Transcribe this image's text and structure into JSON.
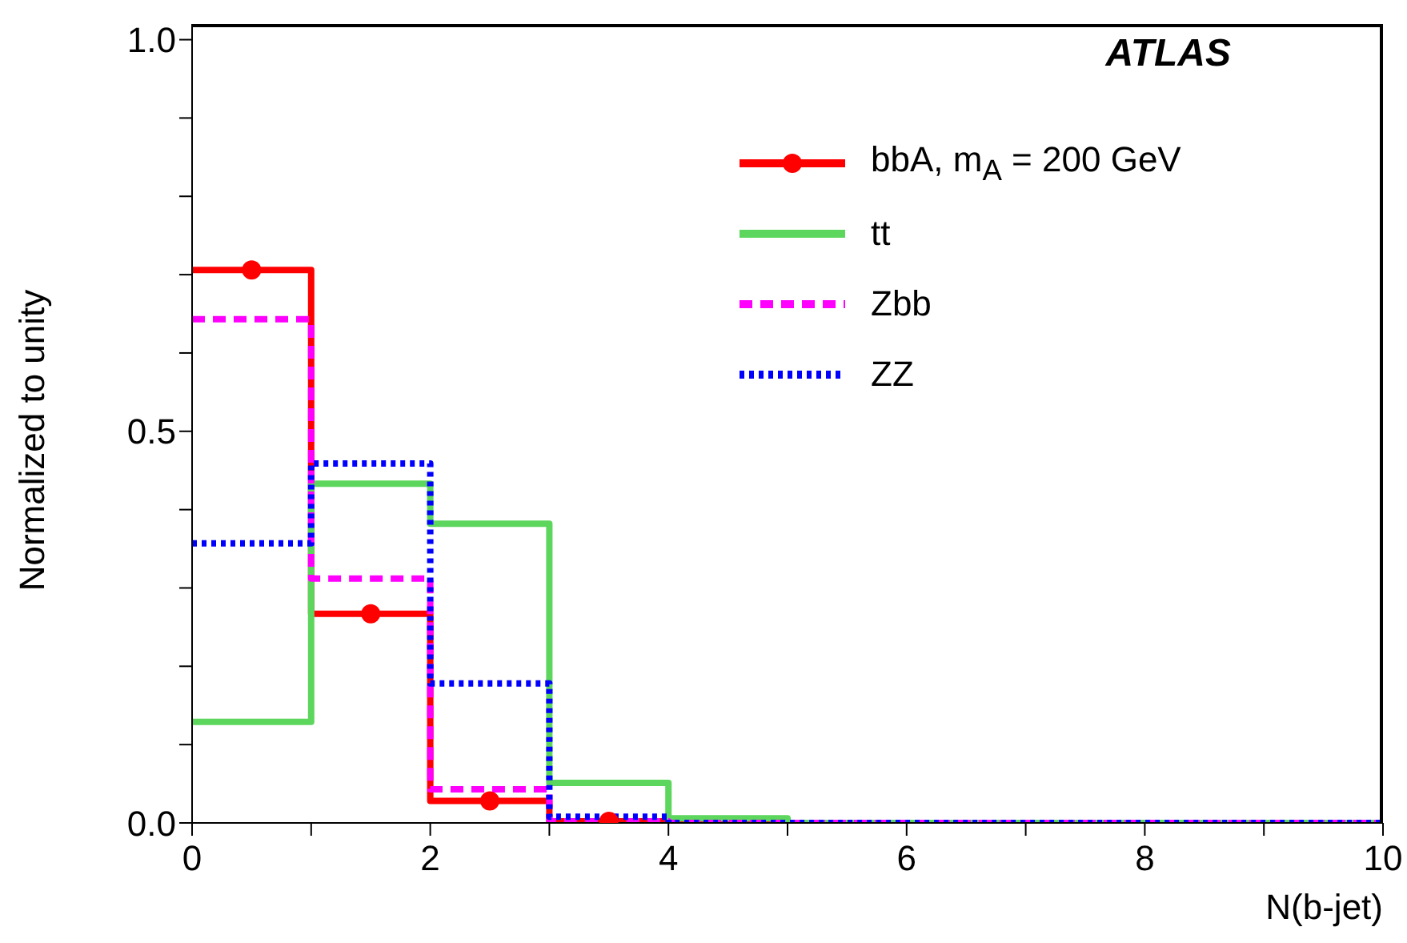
{
  "chart_data": {
    "type": "histogram",
    "xlabel": "N(b-jet)",
    "ylabel": "Normalized to unity",
    "annotations": [
      "ATLAS"
    ],
    "bins": [
      0,
      1,
      2,
      3,
      4,
      5,
      6,
      7,
      8,
      9,
      10
    ],
    "series": [
      {
        "name": "bbA, m$_{A}$ = 200 GeV",
        "color": "#ff0000",
        "values": [
          0.706,
          0.267,
          0.028,
          0.002,
          0,
          0,
          0,
          0,
          0,
          0
        ],
        "line_style": "solid"
      },
      {
        "type": "scatter",
        "color": "#ff0000",
        "x": [
          0.5,
          1.5,
          2.5,
          3.5
        ],
        "values": [
          0.706,
          0.267,
          0.028,
          0.002
        ],
        "marker": "circle"
      },
      {
        "name": "tt",
        "color": "#5cd65c",
        "values": [
          0.129,
          0.433,
          0.382,
          0.051,
          0.006,
          0,
          0,
          0,
          0,
          0
        ],
        "line_style": "solid"
      },
      {
        "name": "Zbb",
        "color": "#ff00ff",
        "values": [
          0.643,
          0.312,
          0.043,
          0.002,
          0,
          0,
          0,
          0,
          0,
          0
        ],
        "line_style": "dashed"
      },
      {
        "name": "ZZ",
        "color": "#0000ff",
        "values": [
          0.357,
          0.459,
          0.178,
          0.008,
          0,
          0,
          0,
          0,
          0,
          0
        ],
        "line_style": "dotted"
      }
    ],
    "xlim": [
      0,
      10
    ],
    "ylim": [
      0,
      1.02
    ],
    "xticks": [
      0,
      {
        "value": 1,
        "label": null
      },
      2,
      {
        "value": 3,
        "label": null
      },
      4,
      {
        "value": 5,
        "label": null
      },
      6,
      {
        "value": 7,
        "label": null
      },
      8,
      {
        "value": 9,
        "label": null
      },
      10
    ],
    "yticks": [
      {
        "value": 0,
        "label": "0.0"
      },
      {
        "value": 0.1,
        "label": null
      },
      {
        "value": 0.2,
        "label": null
      },
      {
        "value": 0.3,
        "label": null
      },
      {
        "value": 0.4,
        "label": null
      },
      {
        "value": 0.5,
        "label": "0.5"
      },
      {
        "value": 0.6,
        "label": null
      },
      {
        "value": 0.7,
        "label": null
      },
      {
        "value": 0.8,
        "label": null
      },
      {
        "value": 0.9,
        "label": null
      },
      {
        "value": 1,
        "label": "1.0"
      }
    ],
    "grid": false,
    "legend": "top right"
  }
}
